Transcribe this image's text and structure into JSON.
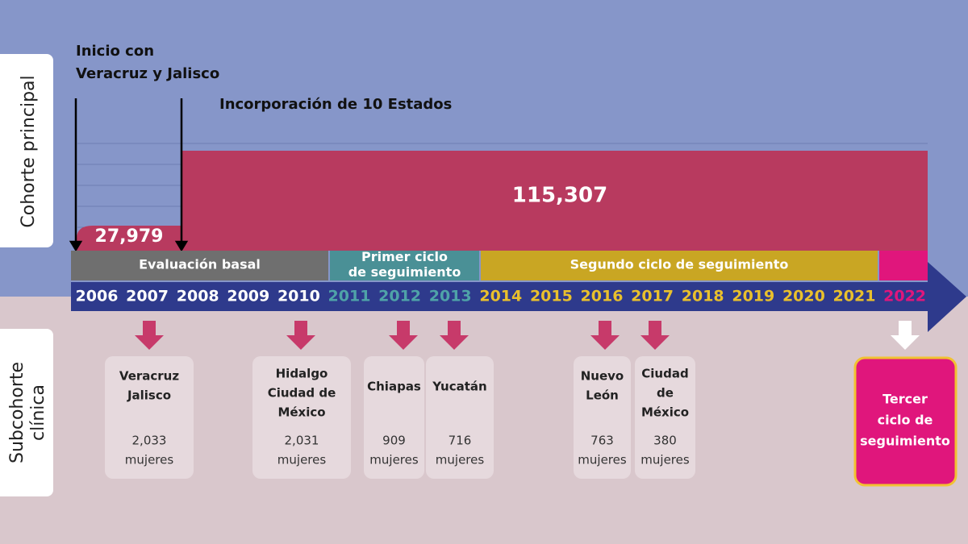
{
  "sections": {
    "top": "Cohorte principal",
    "bottom": [
      "Subcohorte",
      "clínica"
    ]
  },
  "annotations": {
    "start": [
      "Inicio con",
      "Veracruz y Jalisco"
    ],
    "expansion": "Incorporación de 10 Estados"
  },
  "cohort": {
    "initial": "27,979",
    "expanded": "115,307"
  },
  "phases": [
    {
      "label": [
        "Evaluación basal"
      ],
      "color": "#6f6f6f"
    },
    {
      "label": [
        "Primer ciclo",
        "de seguimiento"
      ],
      "color": "#4a9096"
    },
    {
      "label": [
        "Segundo ciclo de seguimiento"
      ],
      "color": "#c9a623"
    },
    {
      "label": [],
      "color": "#e0167c"
    }
  ],
  "year_groups": [
    {
      "color": "#ffffff",
      "years": [
        "2006",
        "2007",
        "2008",
        "2009",
        "2010"
      ]
    },
    {
      "color": "#4fa3a8",
      "years": [
        "2011",
        "2012",
        "2013"
      ]
    },
    {
      "color": "#e9c02c",
      "years": [
        "2014",
        "2015",
        "2016",
        "2017",
        "2018",
        "2019",
        "2020",
        "2021"
      ]
    },
    {
      "color": "#e0167c",
      "years": [
        "2022"
      ]
    }
  ],
  "cards": [
    {
      "lines": [
        "Veracruz",
        "Jalisco"
      ],
      "count": "2,033",
      "unit": "mujeres"
    },
    {
      "lines": [
        "Hidalgo",
        "Ciudad de",
        "México"
      ],
      "count": "2,031",
      "unit": "mujeres"
    },
    {
      "lines": [
        "Chiapas"
      ],
      "count": "909",
      "unit": "mujeres"
    },
    {
      "lines": [
        "Yucatán"
      ],
      "count": "716",
      "unit": "mujeres"
    },
    {
      "lines": [
        "Nuevo",
        "León"
      ],
      "count": "763",
      "unit": "mujeres"
    },
    {
      "lines": [
        "Ciudad",
        "de",
        "México"
      ],
      "count": "380",
      "unit": "mujeres"
    }
  ],
  "next": [
    "Tercer",
    "ciclo de",
    "seguimiento"
  ]
}
